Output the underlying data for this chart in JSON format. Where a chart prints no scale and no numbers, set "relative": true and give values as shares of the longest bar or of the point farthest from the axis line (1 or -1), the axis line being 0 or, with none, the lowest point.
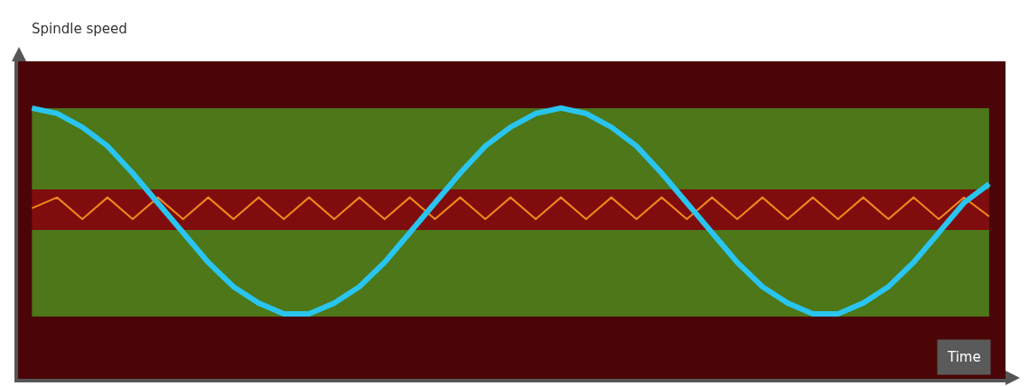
{
  "chart_data": {
    "type": "line",
    "relative": true,
    "xlabel": "Time",
    "annotations": [
      "Spindle speed"
    ],
    "grid": false,
    "marker": "none",
    "line_style": "solid",
    "categories": [
      null,
      null,
      null,
      null,
      null,
      null,
      null,
      null,
      null,
      null,
      null,
      null,
      null,
      null,
      null,
      null,
      null,
      null,
      null,
      null,
      null,
      null,
      null,
      null,
      null,
      null,
      null,
      null,
      null,
      null,
      null,
      null,
      null,
      null,
      null,
      null,
      null,
      null,
      null
    ],
    "series": [
      {
        "color": "#f28a1a",
        "values": [
          0.63,
          0.67,
          0.59,
          0.67,
          0.59,
          0.67,
          0.59,
          0.67,
          0.59,
          0.67,
          0.59,
          0.67,
          0.59,
          0.67,
          0.59,
          0.67,
          0.59,
          0.67,
          0.59,
          0.67,
          0.59,
          0.67,
          0.59,
          0.67,
          0.59,
          0.67,
          0.59,
          0.67,
          0.59,
          0.67,
          0.59,
          0.67,
          0.59,
          0.67,
          0.59,
          0.67,
          0.59,
          0.67,
          0.6
        ]
      },
      {
        "color": "#29c5f0",
        "values": [
          1.0,
          0.98,
          0.93,
          0.86,
          0.76,
          0.65,
          0.54,
          0.43,
          0.34,
          0.28,
          0.24,
          0.24,
          0.28,
          0.34,
          0.43,
          0.54,
          0.65,
          0.76,
          0.86,
          0.93,
          0.98,
          1.0,
          0.98,
          0.93,
          0.86,
          0.76,
          0.65,
          0.54,
          0.43,
          0.34,
          0.28,
          0.24,
          0.24,
          0.28,
          0.34,
          0.43,
          0.54,
          0.65,
          0.72
        ]
      }
    ],
    "bands": [
      {
        "axis": "y",
        "from": 0.7,
        "to": 1.0,
        "color": "#4e8c1c"
      },
      {
        "axis": "y",
        "from": 0.23,
        "to": 0.55,
        "color": "#4e8c1c"
      },
      {
        "axis": "y",
        "from": 0.55,
        "to": 0.7,
        "color": "#8a0f0f"
      }
    ]
  }
}
